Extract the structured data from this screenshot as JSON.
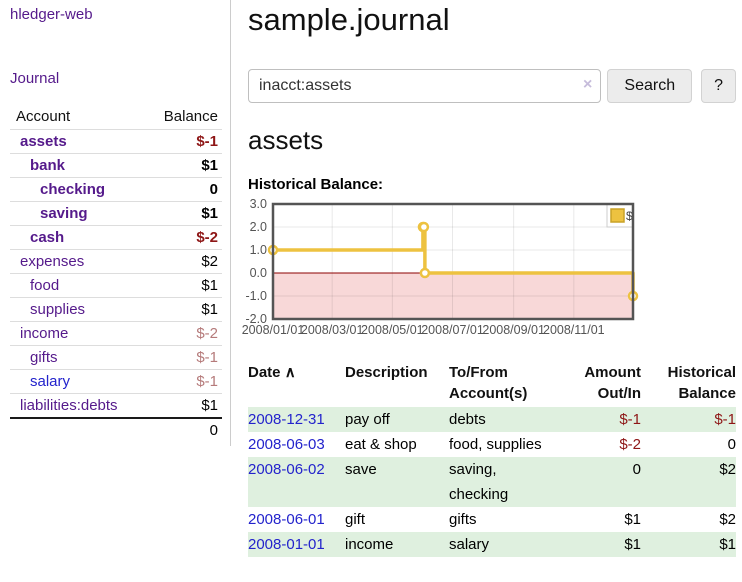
{
  "brand": {
    "label": "hledger-web"
  },
  "nav": {
    "journal": "Journal"
  },
  "accounts_panel": {
    "col_account": "Account",
    "col_balance": "Balance",
    "rows": [
      {
        "name": "assets",
        "balance": "$-1",
        "depth": 0,
        "bold": true,
        "tone": "neg-strong",
        "link": "purple"
      },
      {
        "name": "bank",
        "balance": "$1",
        "depth": 1,
        "bold": true,
        "tone": "pos",
        "link": "purple"
      },
      {
        "name": "checking",
        "balance": "0",
        "depth": 2,
        "bold": true,
        "tone": "pos",
        "link": "purple"
      },
      {
        "name": "saving",
        "balance": "$1",
        "depth": 2,
        "bold": true,
        "tone": "pos",
        "link": "purple"
      },
      {
        "name": "cash",
        "balance": "$-2",
        "depth": 1,
        "bold": true,
        "tone": "neg-strong",
        "link": "purple"
      },
      {
        "name": "expenses",
        "balance": "$2",
        "depth": 0,
        "bold": false,
        "tone": "pos",
        "link": "purple"
      },
      {
        "name": "food",
        "balance": "$1",
        "depth": 1,
        "bold": false,
        "tone": "pos",
        "link": "purple"
      },
      {
        "name": "supplies",
        "balance": "$1",
        "depth": 1,
        "bold": false,
        "tone": "pos",
        "link": "purple"
      },
      {
        "name": "income",
        "balance": "$-2",
        "depth": 0,
        "bold": false,
        "tone": "neg-soft",
        "link": "purple"
      },
      {
        "name": "gifts",
        "balance": "$-1",
        "depth": 1,
        "bold": false,
        "tone": "neg-soft",
        "link": "purple"
      },
      {
        "name": "salary",
        "balance": "$-1",
        "depth": 1,
        "bold": false,
        "tone": "neg-soft",
        "link": "blue"
      },
      {
        "name": "liabilities:debts",
        "balance": "$1",
        "depth": 0,
        "bold": false,
        "tone": "pos",
        "link": "purple"
      }
    ],
    "total": "0"
  },
  "main": {
    "title": "sample.journal",
    "search": {
      "value": "inacct:assets",
      "clear": "×",
      "search_label": "Search",
      "help_label": "?"
    },
    "account_heading": "assets",
    "chart_title": "Historical Balance:"
  },
  "chart_data": {
    "type": "line",
    "step": true,
    "title": "Historical Balance",
    "series": [
      {
        "name": "$",
        "color": "#edc240",
        "points": [
          {
            "date": "2008-01-01",
            "day": 0,
            "value": 1
          },
          {
            "date": "2008-06-01",
            "day": 152,
            "value": 2
          },
          {
            "date": "2008-06-02",
            "day": 153,
            "value": 2
          },
          {
            "date": "2008-06-03",
            "day": 154,
            "value": 0
          },
          {
            "date": "2008-12-31",
            "day": 365,
            "value": -1
          }
        ]
      }
    ],
    "x_domain_days": [
      0,
      365
    ],
    "x_ticks": [
      {
        "label": "2008/01/01",
        "day": 0
      },
      {
        "label": "2008/03/01",
        "day": 60
      },
      {
        "label": "2008/05/01",
        "day": 121
      },
      {
        "label": "2008/07/01",
        "day": 182
      },
      {
        "label": "2008/09/01",
        "day": 244
      },
      {
        "label": "2008/11/01",
        "day": 305
      }
    ],
    "y_ticks": [
      3.0,
      2.0,
      1.0,
      0.0,
      -1.0,
      -2.0
    ],
    "ylim": [
      -2,
      3
    ],
    "legend": {
      "label": "$",
      "position": "top-right",
      "swatch_color": "#edc240"
    },
    "grid": true,
    "colors": {
      "border": "#545454",
      "gridline": "rgba(0,0,0,0.085)",
      "zero_line": "#8b0000",
      "negative_fill": "#f8d8d8",
      "tick_text": "#545454"
    }
  },
  "register": {
    "headers": {
      "date": "Date",
      "sort_icon": "∧",
      "description": "Description",
      "accounts": "To/From Account(s)",
      "amount": "Amount Out/In",
      "balance": "Historical Balance"
    },
    "rows": [
      {
        "date": "2008-12-31",
        "description": "pay off",
        "accounts": "debts",
        "amount": "$-1",
        "balance": "$-1"
      },
      {
        "date": "2008-06-03",
        "description": "eat & shop",
        "accounts": "food, supplies",
        "amount": "$-2",
        "balance": "0"
      },
      {
        "date": "2008-06-02",
        "description": "save",
        "accounts": "saving, checking",
        "amount": "0",
        "balance": "$2"
      },
      {
        "date": "2008-06-01",
        "description": "gift",
        "accounts": "gifts",
        "amount": "$1",
        "balance": "$2"
      },
      {
        "date": "2008-01-01",
        "description": "income",
        "accounts": "salary",
        "amount": "$1",
        "balance": "$1"
      }
    ]
  }
}
